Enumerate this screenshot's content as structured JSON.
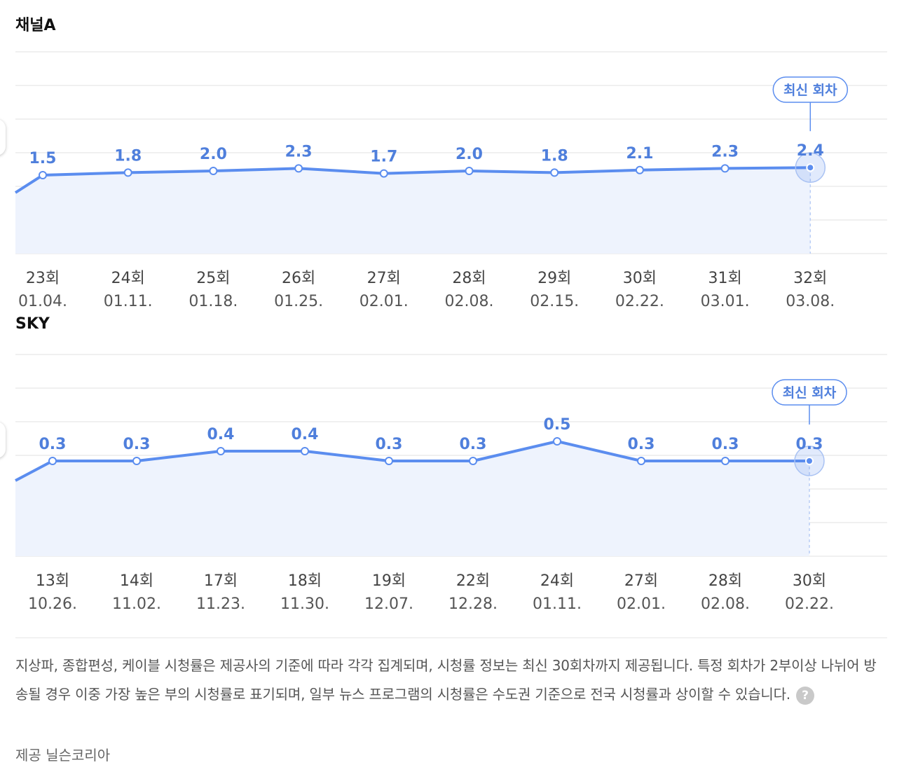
{
  "chart_data": [
    {
      "type": "area",
      "title": "채널A",
      "categories": [
        "23회",
        "24회",
        "25회",
        "26회",
        "27회",
        "28회",
        "29회",
        "30회",
        "31회",
        "32회"
      ],
      "dates": [
        "01.04.",
        "01.11.",
        "01.18.",
        "01.25.",
        "02.01.",
        "02.08.",
        "02.15.",
        "02.22.",
        "03.01.",
        "03.08."
      ],
      "values": [
        1.5,
        1.8,
        2.0,
        2.3,
        1.7,
        2.0,
        1.8,
        2.1,
        2.3,
        2.4
      ],
      "value_labels": [
        "1.5",
        "1.8",
        "2.0",
        "2.3",
        "1.7",
        "2.0",
        "1.8",
        "2.1",
        "2.3",
        "2.4"
      ],
      "latest_label": "최신 회차",
      "xlabel": "",
      "ylabel": "",
      "grid": true
    },
    {
      "type": "area",
      "title": "SKY",
      "categories": [
        "13회",
        "14회",
        "17회",
        "18회",
        "19회",
        "22회",
        "24회",
        "27회",
        "28회",
        "30회"
      ],
      "dates": [
        "10.26.",
        "11.02.",
        "11.23.",
        "11.30.",
        "12.07.",
        "12.28.",
        "01.11.",
        "02.01.",
        "02.08.",
        "02.22."
      ],
      "values": [
        0.3,
        0.3,
        0.4,
        0.4,
        0.3,
        0.3,
        0.5,
        0.3,
        0.3,
        0.3
      ],
      "value_labels": [
        "0.3",
        "0.3",
        "0.4",
        "0.4",
        "0.3",
        "0.3",
        "0.5",
        "0.3",
        "0.3",
        "0.3"
      ],
      "latest_label": "최신 회차",
      "xlabel": "",
      "ylabel": "",
      "grid": true
    }
  ],
  "footer": {
    "note": "지상파, 종합편성, 케이블 시청률은 제공사의 기준에 따라 각각 집계되며, 시청률 정보는 최신 30회차까지 제공됩니다. 특정 회차가 2부이상 나뉘어 방송될 경우 이중 가장 높은 부의 시청률로 표기되며, 일부 뉴스 프로그램의 시청률은 수도권 기준으로 전국 시청률과 상이할 수 있습니다.",
    "help": "?",
    "provider": "제공 닐슨코리아"
  },
  "colors": {
    "line": "#5b8def",
    "area": "#eef3fd",
    "label": "#4f7fdc",
    "grid": "#ececec",
    "axis_text": "#444444"
  }
}
